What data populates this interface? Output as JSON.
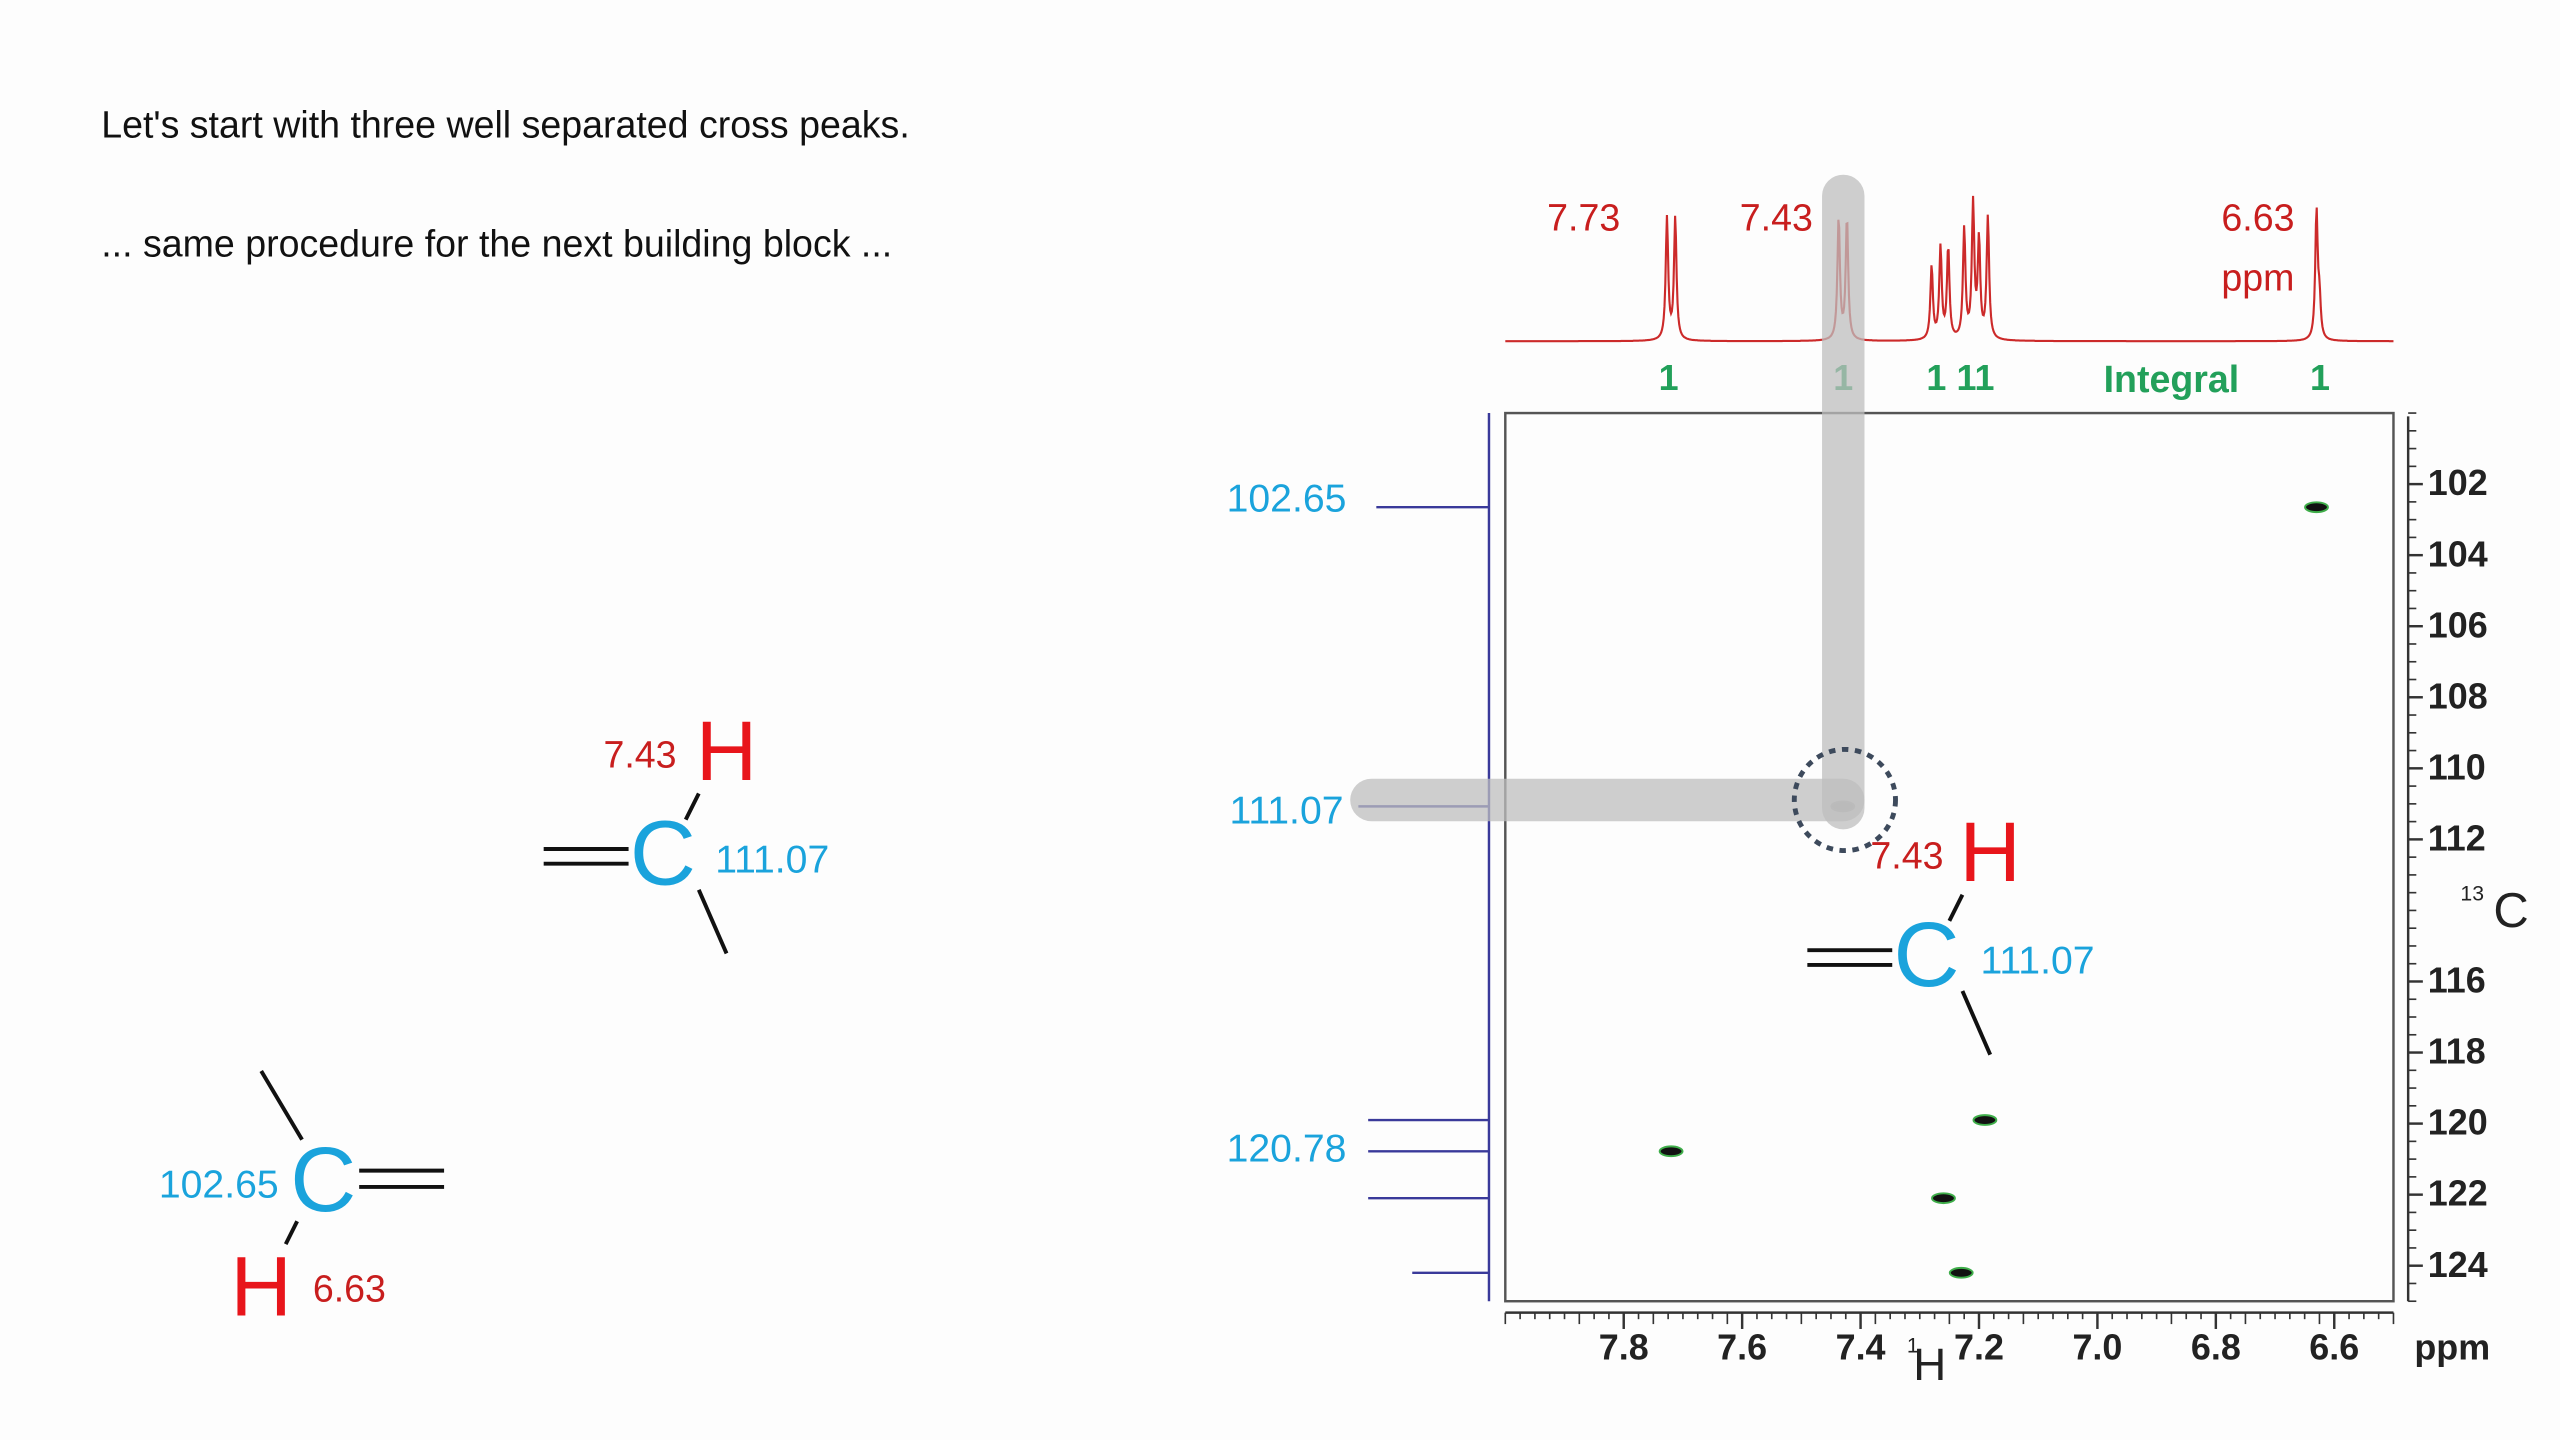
{
  "slide": {
    "lines": [
      "Let's start with three well separated cross peaks.",
      "... same procedure for the next building block ..."
    ],
    "fragments": [
      {
        "h_shift": "7.43",
        "h": "H",
        "c": "C",
        "c_shift": "111.07"
      },
      {
        "c_shift": "102.65",
        "c": "C",
        "h": "H",
        "h_shift": "6.63"
      },
      {
        "h_shift": "7.43",
        "h": "H",
        "c": "C",
        "c_shift": "111.07"
      }
    ],
    "spectrum": {
      "peak_labels": [
        "7.73",
        "7.43",
        "6.63",
        "ppm"
      ],
      "integrals": [
        "1",
        "1",
        "1",
        "11",
        "1"
      ],
      "integral_label": "Integral",
      "c_labels": [
        "102.65",
        "111.07",
        "120.78"
      ],
      "x_axis": {
        "lim": [
          8.0,
          6.5
        ],
        "ticks": [
          "7.8",
          "7.6",
          "7.4",
          "7.2",
          "7.0",
          "6.8",
          "6.6"
        ],
        "label_sup": "1",
        "label": "H",
        "unit": "ppm"
      },
      "y_axis": {
        "lim": [
          100,
          125
        ],
        "ticks": [
          "102",
          "104",
          "106",
          "108",
          "110",
          "112",
          "116",
          "118",
          "120",
          "122",
          "124"
        ],
        "label_sup": "13",
        "label": "C"
      },
      "cross_peaks": [
        [
          6.63,
          102.65
        ],
        [
          7.43,
          111.07
        ],
        [
          7.19,
          119.9
        ],
        [
          7.72,
          120.78
        ],
        [
          7.26,
          122.1
        ],
        [
          7.23,
          124.2
        ]
      ]
    }
  }
}
